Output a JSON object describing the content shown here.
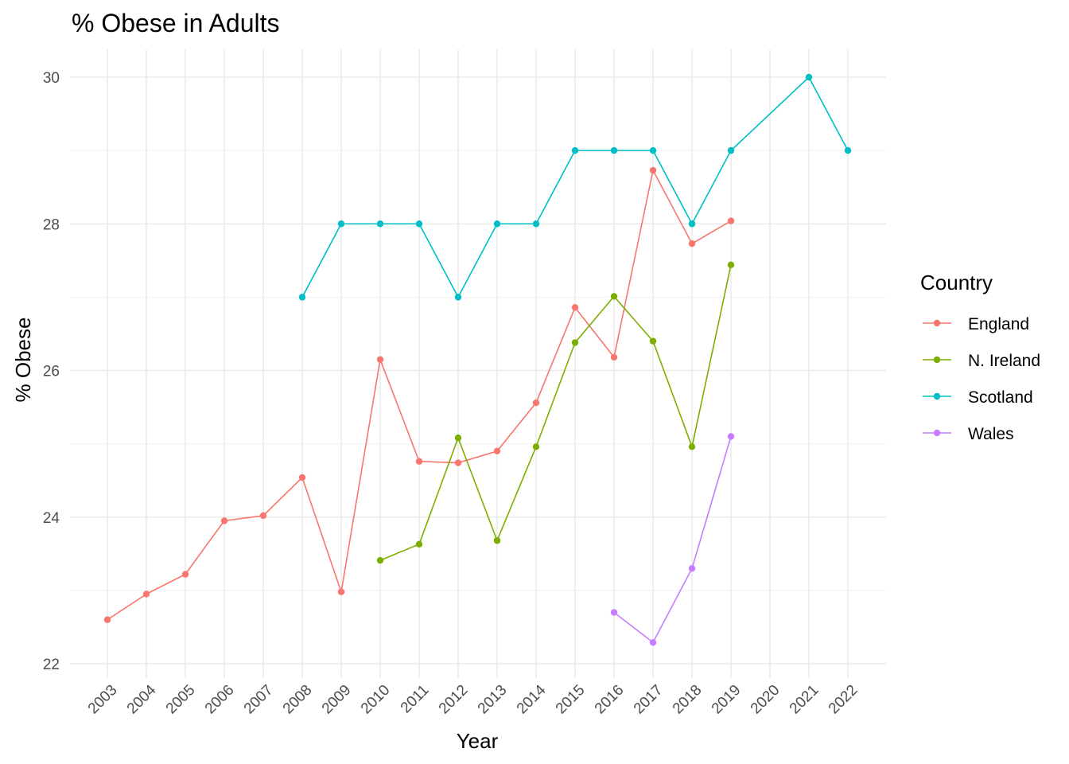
{
  "chart_data": {
    "type": "line",
    "title": "% Obese in Adults",
    "xlabel": "Year",
    "ylabel": "% Obese",
    "categories": [
      "2003",
      "2004",
      "2005",
      "2006",
      "2007",
      "2008",
      "2009",
      "2010",
      "2011",
      "2012",
      "2013",
      "2014",
      "2015",
      "2016",
      "2017",
      "2018",
      "2019",
      "2020",
      "2021",
      "2022"
    ],
    "ylim": [
      22,
      30
    ],
    "yticks": [
      22,
      24,
      26,
      28,
      30
    ],
    "grid": true,
    "legend_title": "Country",
    "legend_position": "right",
    "series": [
      {
        "name": "England",
        "color": "#F8766D",
        "points": [
          {
            "x": "2003",
            "y": 22.6
          },
          {
            "x": "2004",
            "y": 22.95
          },
          {
            "x": "2005",
            "y": 23.22
          },
          {
            "x": "2006",
            "y": 23.95
          },
          {
            "x": "2007",
            "y": 24.02
          },
          {
            "x": "2008",
            "y": 24.54
          },
          {
            "x": "2009",
            "y": 22.98
          },
          {
            "x": "2010",
            "y": 26.15
          },
          {
            "x": "2011",
            "y": 24.76
          },
          {
            "x": "2012",
            "y": 24.74
          },
          {
            "x": "2013",
            "y": 24.9
          },
          {
            "x": "2014",
            "y": 25.56
          },
          {
            "x": "2015",
            "y": 26.86
          },
          {
            "x": "2016",
            "y": 26.18
          },
          {
            "x": "2017",
            "y": 28.73
          },
          {
            "x": "2018",
            "y": 27.73
          },
          {
            "x": "2019",
            "y": 28.04
          }
        ]
      },
      {
        "name": "N. Ireland",
        "color": "#7CAE00",
        "points": [
          {
            "x": "2010",
            "y": 23.41
          },
          {
            "x": "2011",
            "y": 23.63
          },
          {
            "x": "2012",
            "y": 25.08
          },
          {
            "x": "2013",
            "y": 23.68
          },
          {
            "x": "2014",
            "y": 24.96
          },
          {
            "x": "2015",
            "y": 26.38
          },
          {
            "x": "2016",
            "y": 27.01
          },
          {
            "x": "2017",
            "y": 26.4
          },
          {
            "x": "2018",
            "y": 24.96
          },
          {
            "x": "2019",
            "y": 27.44
          }
        ]
      },
      {
        "name": "Scotland",
        "color": "#00BFC4",
        "points": [
          {
            "x": "2008",
            "y": 27
          },
          {
            "x": "2009",
            "y": 28
          },
          {
            "x": "2010",
            "y": 28
          },
          {
            "x": "2011",
            "y": 28
          },
          {
            "x": "2012",
            "y": 27
          },
          {
            "x": "2013",
            "y": 28
          },
          {
            "x": "2014",
            "y": 28
          },
          {
            "x": "2015",
            "y": 29
          },
          {
            "x": "2016",
            "y": 29
          },
          {
            "x": "2017",
            "y": 29
          },
          {
            "x": "2018",
            "y": 28
          },
          {
            "x": "2019",
            "y": 29
          },
          {
            "x": "2021",
            "y": 30
          },
          {
            "x": "2022",
            "y": 29
          }
        ]
      },
      {
        "name": "Wales",
        "color": "#C77CFF",
        "points": [
          {
            "x": "2016",
            "y": 22.7
          },
          {
            "x": "2017",
            "y": 22.29
          },
          {
            "x": "2018",
            "y": 23.3
          },
          {
            "x": "2019",
            "y": 25.1
          }
        ]
      }
    ]
  }
}
